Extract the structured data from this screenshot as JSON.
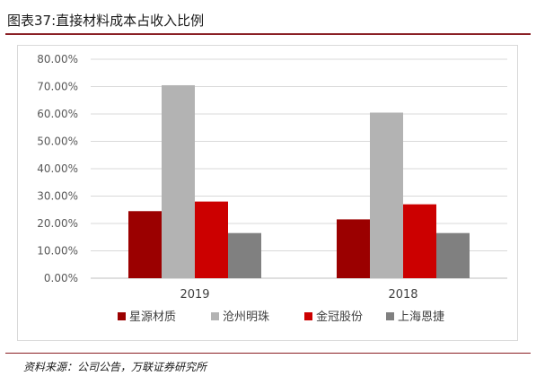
{
  "figure": {
    "title": "图表37:直接材料成本占收入比例",
    "source": "资料来源：公司公告，万联证券研究所"
  },
  "chart_data": {
    "type": "bar",
    "categories": [
      "2019",
      "2018"
    ],
    "series": [
      {
        "name": "星源材质",
        "values": [
          24.5,
          21.5
        ],
        "color": "#9b0000"
      },
      {
        "name": "沧州明珠",
        "values": [
          70.5,
          60.5
        ],
        "color": "#b3b3b3"
      },
      {
        "name": "金冠股份",
        "values": [
          28.0,
          27.0
        ],
        "color": "#cc0000"
      },
      {
        "name": "上海恩捷",
        "values": [
          16.5,
          16.5
        ],
        "color": "#808080"
      }
    ],
    "ylim": [
      0,
      80
    ],
    "yticks": [
      "0.00%",
      "10.00%",
      "20.00%",
      "30.00%",
      "40.00%",
      "50.00%",
      "60.00%",
      "70.00%",
      "80.00%"
    ],
    "legend_position": "bottom",
    "grid": true
  }
}
